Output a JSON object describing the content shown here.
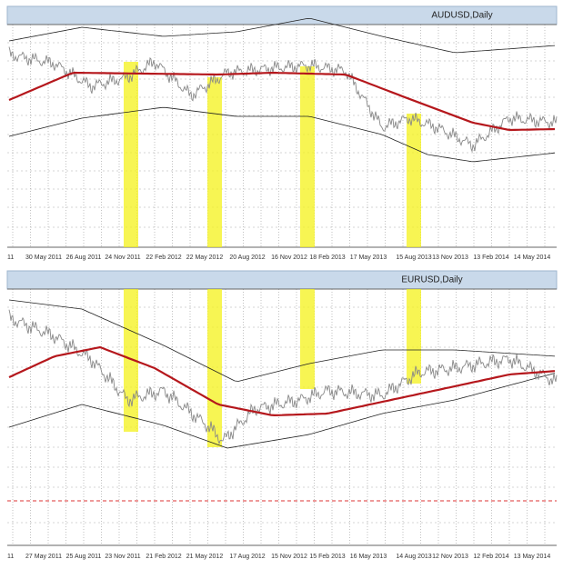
{
  "panels": [
    {
      "title": "AUDUSD,Daily",
      "x_labels": [
        "11",
        "30 May 2011",
        "26 Aug 2011",
        "24 Nov 2011",
        "22 Feb 2012",
        "22 May 2012",
        "20 Aug 2012",
        "16 Nov 2012",
        "18 Feb 2013",
        "17 May 2013",
        "15 Aug 2013",
        "13 Nov 2013",
        "13 Feb 2014",
        "14 May 2014"
      ]
    },
    {
      "title": "EURUSD,Daily",
      "x_labels": [
        "11",
        "27 May 2011",
        "25 Aug 2011",
        "23 Nov 2011",
        "21 Feb 2012",
        "21 May 2012",
        "17 Aug 2012",
        "15 Nov 2012",
        "15 Feb 2013",
        "16 May 2013",
        "14 Aug 2013",
        "12 Nov 2013",
        "12 Feb 2014",
        "13 May 2014"
      ]
    }
  ]
}
